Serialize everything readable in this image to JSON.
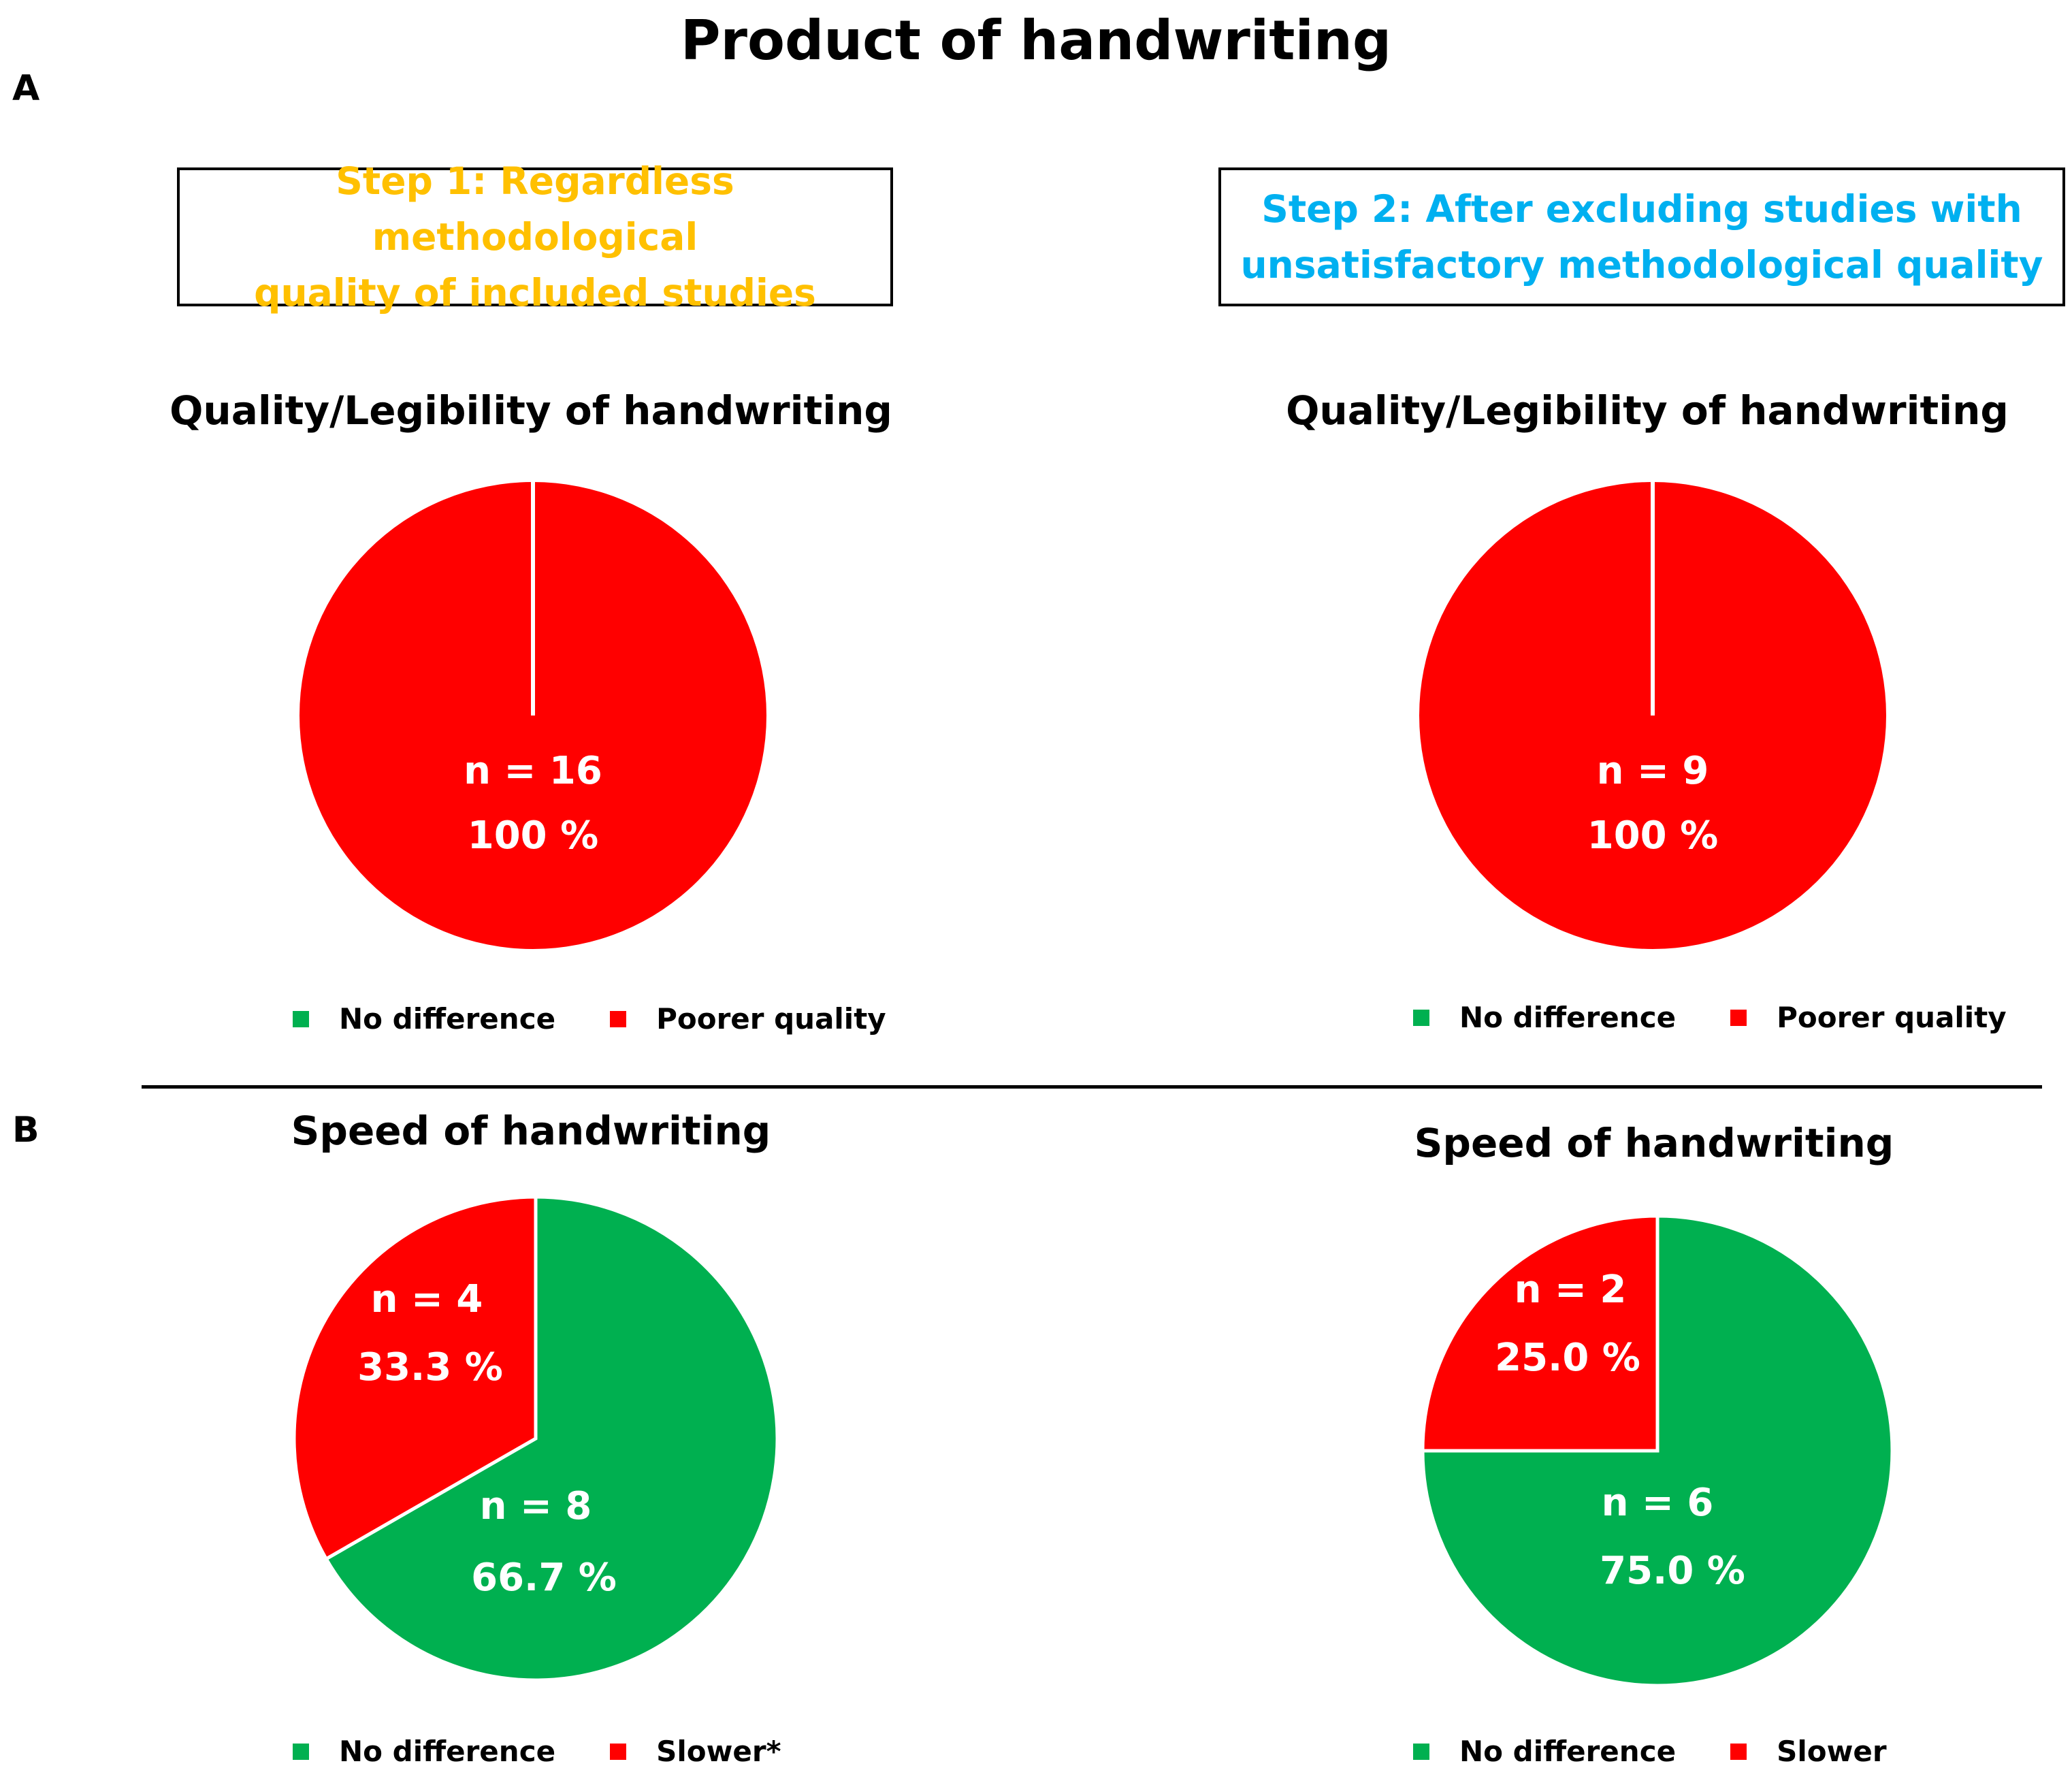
{
  "title": "Product of handwriting",
  "panels": {
    "a": "A",
    "b": "B"
  },
  "steps": {
    "step1": {
      "line1": "Step 1: Regardless methodological",
      "line2": "quality of included studies",
      "color": "#FFC000"
    },
    "step2": {
      "line1": "Step 2: After excluding studies with",
      "line2": "unsatisfactory methodological quality",
      "color": "#00B0F0"
    }
  },
  "colors": {
    "no_difference": "#00B050",
    "worse": "#FF0000"
  },
  "chart_data": [
    {
      "type": "pie",
      "title": "Quality/Legibility of handwriting",
      "step": "Step 1",
      "categories": [
        "No difference",
        "Poorer quality"
      ],
      "counts": [
        0,
        16
      ],
      "values": [
        0,
        100
      ],
      "labels": [
        {
          "n": "",
          "pct": ""
        },
        {
          "n": "n = 16",
          "pct": "100 %"
        }
      ],
      "legend": [
        "No difference",
        "Poorer quality"
      ]
    },
    {
      "type": "pie",
      "title": "Quality/Legibility of handwriting",
      "step": "Step 2",
      "categories": [
        "No difference",
        "Poorer quality"
      ],
      "counts": [
        0,
        9
      ],
      "values": [
        0,
        100
      ],
      "labels": [
        {
          "n": "",
          "pct": ""
        },
        {
          "n": "n = 9",
          "pct": "100 %"
        }
      ],
      "legend": [
        "No difference",
        "Poorer quality"
      ]
    },
    {
      "type": "pie",
      "title": "Speed of handwriting",
      "step": "Step 1",
      "categories": [
        "No difference",
        "Slower*"
      ],
      "counts": [
        8,
        4
      ],
      "values": [
        66.7,
        33.3
      ],
      "labels": [
        {
          "n": "n = 8",
          "pct": "66.7 %"
        },
        {
          "n": "n = 4",
          "pct": "33.3 %"
        }
      ],
      "legend": [
        "No difference",
        "Slower*"
      ]
    },
    {
      "type": "pie",
      "title": "Speed of handwriting",
      "step": "Step 2",
      "categories": [
        "No difference",
        "Slower"
      ],
      "counts": [
        6,
        2
      ],
      "values": [
        75.0,
        25.0
      ],
      "labels": [
        {
          "n": "n = 6",
          "pct": "75.0 %"
        },
        {
          "n": "n = 2",
          "pct": "25.0 %"
        }
      ],
      "legend": [
        "No difference",
        "Slower"
      ]
    }
  ]
}
